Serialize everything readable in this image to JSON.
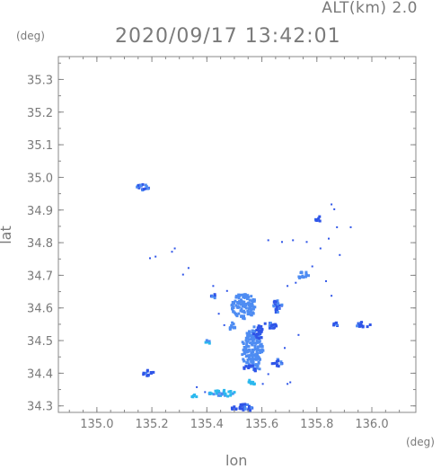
{
  "header": {
    "alt_label": "ALT(km) 2.0",
    "timestamp": "2020/09/17 13:42:01",
    "y_unit": "(deg)",
    "x_unit": "(deg)"
  },
  "chart_data": {
    "type": "heatmap",
    "title": "2020/09/17 13:42:01",
    "subtitle": "ALT(km) 2.0",
    "xlabel": "lon",
    "ylabel": "lat",
    "xlim": [
      134.86,
      136.16
    ],
    "ylim": [
      34.28,
      35.37
    ],
    "x_ticks": [
      "135.0",
      "135.2",
      "135.4",
      "135.6",
      "135.8",
      "136.0"
    ],
    "y_ticks": [
      "34.3",
      "34.4",
      "34.5",
      "34.6",
      "34.7",
      "34.8",
      "34.9",
      "35.0",
      "35.1",
      "35.2",
      "35.3"
    ],
    "grid": false,
    "colors": {
      "frame": "#888888",
      "weak": "#2f55e8",
      "medium": "#4e8cf2",
      "strong": "#2bb8ee"
    },
    "echoes": [
      {
        "lon": 135.16,
        "lat": 34.975,
        "rx": 0.025,
        "ry": 0.012,
        "level": "weak"
      },
      {
        "lon": 135.18,
        "lat": 34.405,
        "rx": 0.022,
        "ry": 0.01,
        "level": "weak"
      },
      {
        "lon": 135.4,
        "lat": 34.5,
        "rx": 0.01,
        "ry": 0.006,
        "level": "strong"
      },
      {
        "lon": 135.525,
        "lat": 34.298,
        "rx": 0.04,
        "ry": 0.012,
        "level": "weak"
      },
      {
        "lon": 135.56,
        "lat": 34.475,
        "rx": 0.04,
        "ry": 0.06,
        "level": "medium"
      },
      {
        "lon": 135.53,
        "lat": 34.61,
        "rx": 0.045,
        "ry": 0.04,
        "level": "medium"
      },
      {
        "lon": 135.56,
        "lat": 34.42,
        "rx": 0.03,
        "ry": 0.01,
        "level": "weak"
      },
      {
        "lon": 135.65,
        "lat": 34.435,
        "rx": 0.02,
        "ry": 0.012,
        "level": "weak"
      },
      {
        "lon": 135.625,
        "lat": 34.55,
        "rx": 0.025,
        "ry": 0.01,
        "level": "weak"
      },
      {
        "lon": 135.65,
        "lat": 34.61,
        "rx": 0.02,
        "ry": 0.02,
        "level": "weak"
      },
      {
        "lon": 135.745,
        "lat": 34.705,
        "rx": 0.02,
        "ry": 0.012,
        "level": "medium"
      },
      {
        "lon": 135.8,
        "lat": 34.875,
        "rx": 0.012,
        "ry": 0.01,
        "level": "weak"
      },
      {
        "lon": 135.865,
        "lat": 34.555,
        "rx": 0.01,
        "ry": 0.008,
        "level": "weak"
      },
      {
        "lon": 135.965,
        "lat": 34.552,
        "rx": 0.025,
        "ry": 0.01,
        "level": "weak"
      },
      {
        "lon": 135.555,
        "lat": 34.375,
        "rx": 0.02,
        "ry": 0.008,
        "level": "strong"
      },
      {
        "lon": 135.45,
        "lat": 34.342,
        "rx": 0.05,
        "ry": 0.01,
        "level": "strong"
      },
      {
        "lon": 135.35,
        "lat": 34.335,
        "rx": 0.012,
        "ry": 0.005,
        "level": "strong"
      },
      {
        "lon": 135.42,
        "lat": 34.64,
        "rx": 0.01,
        "ry": 0.008,
        "level": "weak"
      },
      {
        "lon": 135.49,
        "lat": 34.545,
        "rx": 0.012,
        "ry": 0.015,
        "level": "medium"
      },
      {
        "lon": 135.58,
        "lat": 34.53,
        "rx": 0.02,
        "ry": 0.025,
        "level": "weak"
      }
    ],
    "speckles": [
      [
        135.27,
        34.775
      ],
      [
        135.28,
        34.785
      ],
      [
        135.21,
        34.76
      ],
      [
        135.19,
        34.755
      ],
      [
        135.33,
        34.725
      ],
      [
        135.31,
        34.705
      ],
      [
        135.62,
        34.81
      ],
      [
        135.67,
        34.805
      ],
      [
        135.71,
        34.81
      ],
      [
        135.76,
        34.805
      ],
      [
        135.81,
        34.785
      ],
      [
        135.84,
        34.815
      ],
      [
        135.85,
        34.92
      ],
      [
        135.86,
        34.905
      ],
      [
        135.87,
        34.85
      ],
      [
        135.92,
        34.85
      ],
      [
        135.88,
        34.765
      ],
      [
        135.85,
        34.64
      ],
      [
        135.83,
        34.685
      ],
      [
        135.78,
        34.73
      ],
      [
        135.72,
        34.68
      ],
      [
        135.69,
        34.67
      ],
      [
        135.42,
        34.67
      ],
      [
        135.47,
        34.655
      ],
      [
        135.44,
        34.585
      ],
      [
        135.39,
        34.345
      ],
      [
        135.36,
        34.36
      ],
      [
        135.69,
        34.37
      ],
      [
        135.7,
        34.375
      ],
      [
        135.6,
        34.37
      ],
      [
        135.62,
        34.4
      ],
      [
        135.46,
        34.55
      ],
      [
        135.73,
        34.52
      ],
      [
        135.68,
        34.48
      ]
    ]
  }
}
